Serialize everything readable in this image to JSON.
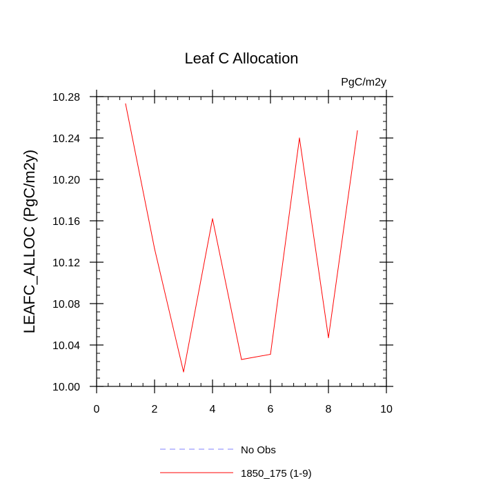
{
  "chart_data": {
    "type": "line",
    "title": "Leaf C Allocation",
    "units": "PgC/m2y",
    "xlabel": "",
    "ylabel": "LEAFC_ALLOC  (PgC/m2y)",
    "xlim": [
      0,
      10
    ],
    "ylim": [
      10.0,
      10.28
    ],
    "x_ticks": [
      0,
      2,
      4,
      6,
      8,
      10
    ],
    "x_tick_labels": [
      "0",
      "2",
      "4",
      "6",
      "8",
      "10"
    ],
    "y_ticks": [
      10.0,
      10.04,
      10.08,
      10.12,
      10.16,
      10.2,
      10.24,
      10.28
    ],
    "y_tick_labels": [
      "10.00",
      "10.04",
      "10.08",
      "10.12",
      "10.16",
      "10.20",
      "10.24",
      "10.28"
    ],
    "grid": false,
    "legend_position": "bottom",
    "series": [
      {
        "name": "1850_175 (1-9)",
        "color": "#ff0000",
        "style": "solid",
        "x": [
          1,
          2,
          3,
          4,
          5,
          6,
          7,
          8,
          9
        ],
        "values": [
          10.273,
          10.133,
          10.014,
          10.162,
          10.026,
          10.031,
          10.24,
          10.047,
          10.247
        ]
      }
    ],
    "legend": [
      {
        "label": "No Obs",
        "color": "#8080ff",
        "style": "dashed"
      },
      {
        "label": "1850_175 (1-9)",
        "color": "#ff0000",
        "style": "solid"
      }
    ]
  }
}
